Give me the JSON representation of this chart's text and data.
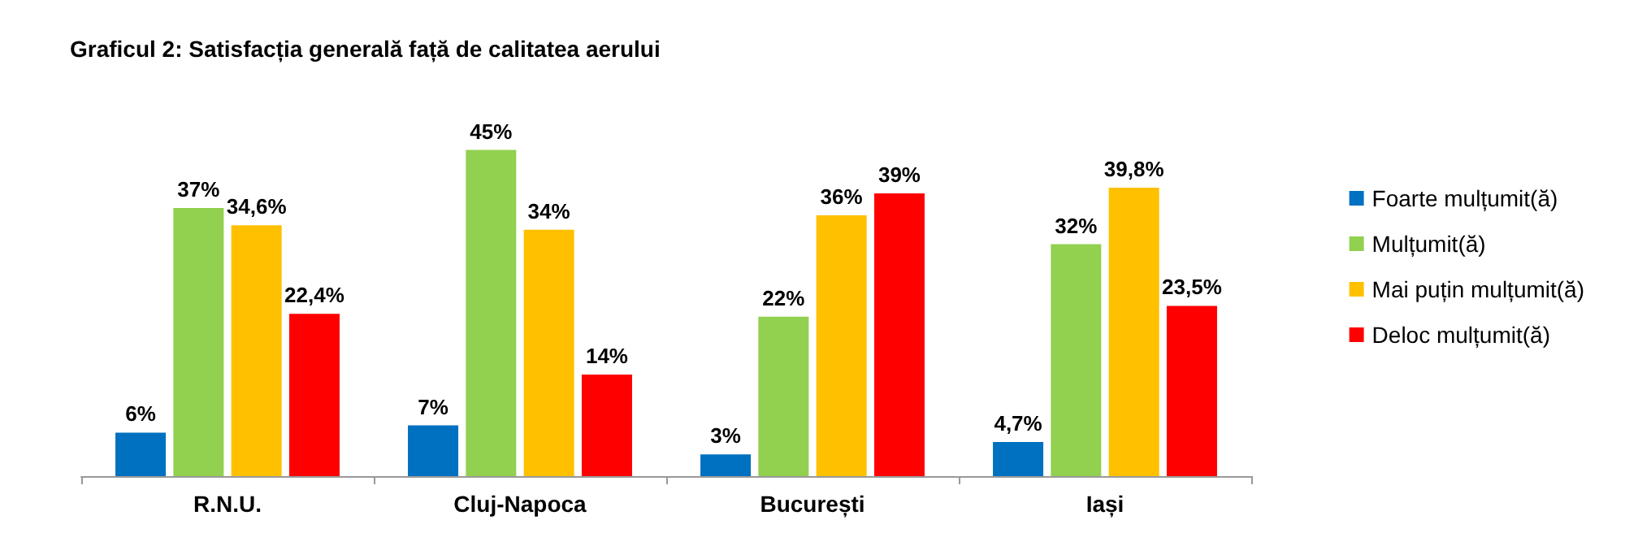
{
  "chart_data": {
    "type": "bar",
    "title": "Graficul 2: Satisfacția generală față de calitatea aerului",
    "categories": [
      "R.N.U.",
      "Cluj-Napoca",
      "București",
      "Iași"
    ],
    "series": [
      {
        "name": "Foarte mulțumit(ă)",
        "color": "#0070c0",
        "values": [
          6,
          7,
          3,
          4.7
        ],
        "value_labels": [
          "6%",
          "7%",
          "3%",
          "4,7%"
        ]
      },
      {
        "name": "Mulțumit(ă)",
        "color": "#92d050",
        "values": [
          37,
          45,
          22,
          32
        ],
        "value_labels": [
          "37%",
          "45%",
          "22%",
          "32%"
        ]
      },
      {
        "name": "Mai puțin mulțumit(ă)",
        "color": "#ffc000",
        "values": [
          34.6,
          34,
          36,
          39.8
        ],
        "value_labels": [
          "34,6%",
          "34%",
          "36%",
          "39,8%"
        ]
      },
      {
        "name": "Deloc mulțumit(ă)",
        "color": "#ff0000",
        "values": [
          22.4,
          14,
          39,
          23.5
        ],
        "value_labels": [
          "22,4%",
          "14%",
          "39%",
          "23,5%"
        ]
      }
    ],
    "legend": "right"
  }
}
